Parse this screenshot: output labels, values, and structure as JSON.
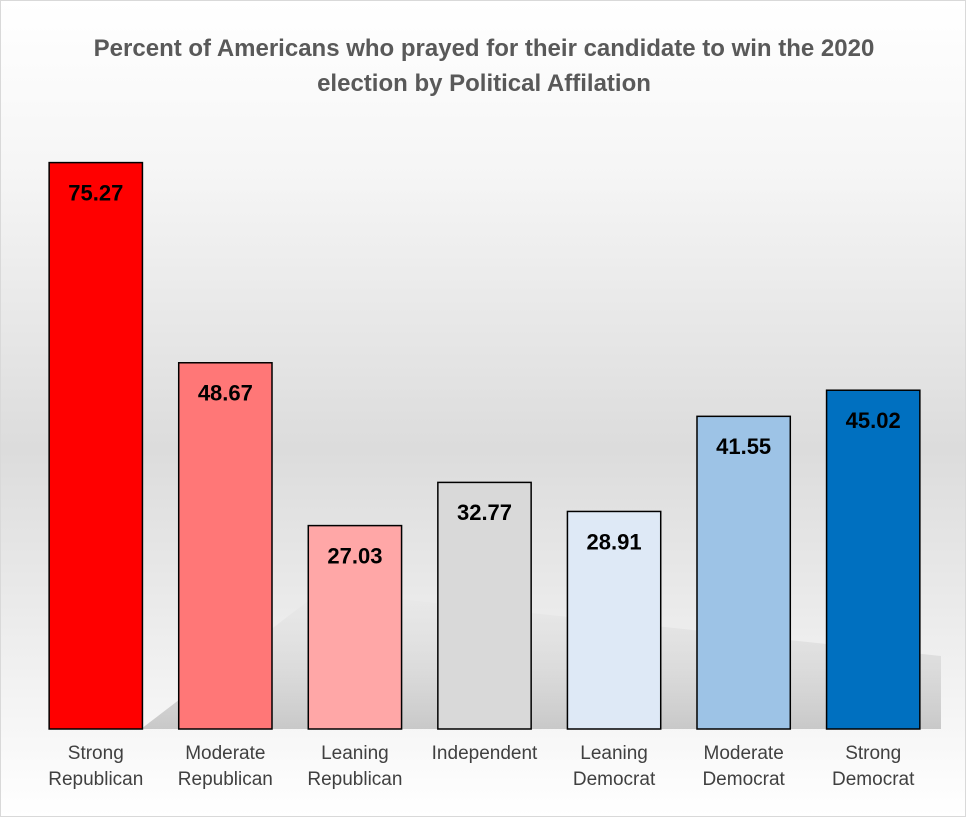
{
  "chart_data": {
    "type": "bar",
    "title": "Percent of Americans who prayed for their candidate to win the 2020 election by Political Affilation",
    "categories": [
      "Strong Republican",
      "Moderate Republican",
      "Leaning Republican",
      "Independent",
      "Leaning Democrat",
      "Moderate Democrat",
      "Strong Democrat"
    ],
    "values": [
      75.27,
      48.67,
      27.03,
      32.77,
      28.91,
      41.55,
      45.02
    ],
    "colors": [
      "#ff0000",
      "#ff7777",
      "#ffa7a7",
      "#d9d9d9",
      "#dee9f6",
      "#9dc3e6",
      "#0070c0"
    ],
    "ylim": [
      0,
      80
    ]
  }
}
